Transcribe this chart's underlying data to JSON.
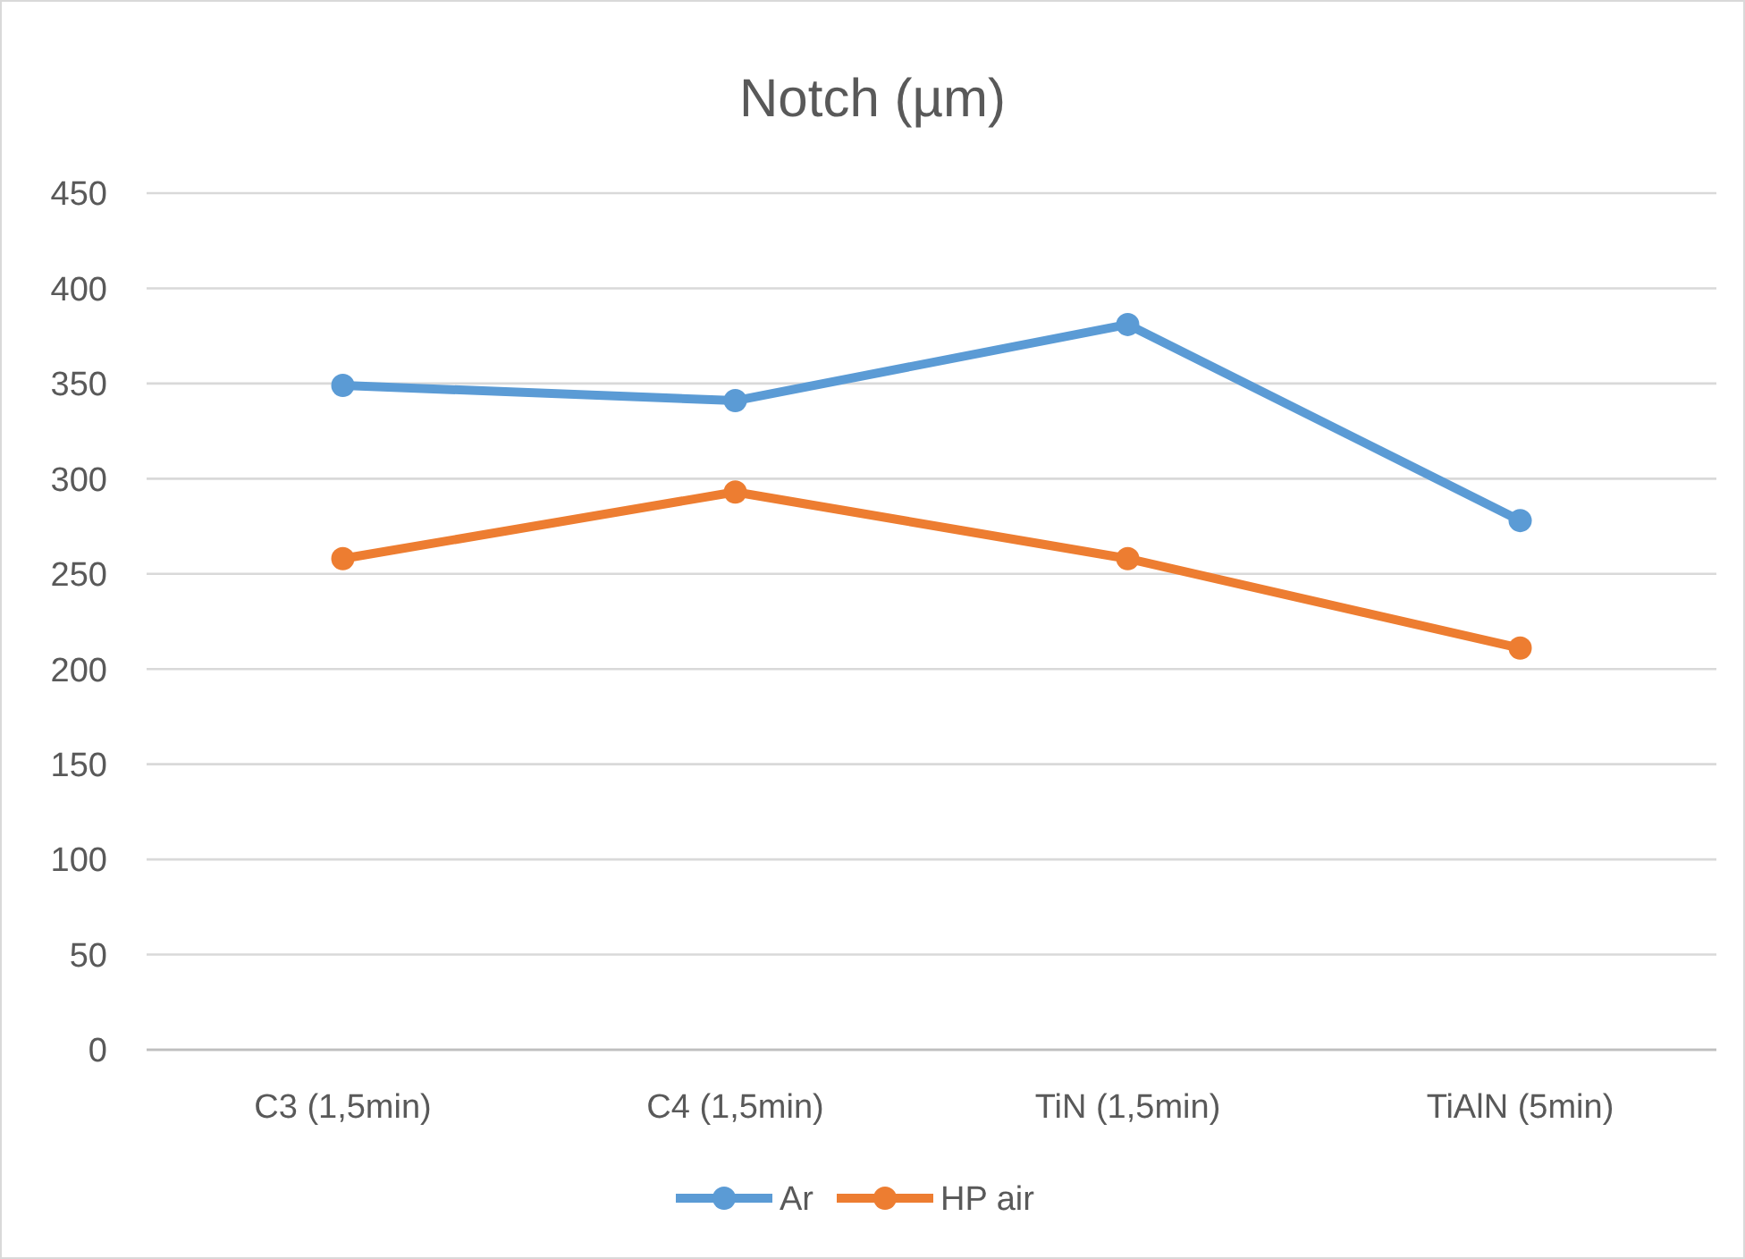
{
  "chart_data": {
    "type": "line",
    "title": "Notch (µm)",
    "categories": [
      "C3 (1,5min)",
      "C4 (1,5min)",
      "TiN (1,5min)",
      "TiAlN (5min)"
    ],
    "series": [
      {
        "name": "Ar",
        "color": "#5b9bd5",
        "values": [
          349,
          341,
          381,
          278
        ]
      },
      {
        "name": "HP air",
        "color": "#ed7d31",
        "values": [
          258,
          293,
          258,
          211
        ]
      }
    ],
    "ylim": [
      0,
      450
    ],
    "yticks": [
      0,
      50,
      100,
      150,
      200,
      250,
      300,
      350,
      400,
      450
    ],
    "grid": "y",
    "legend": "bottom",
    "marker": "circle",
    "line_style": "solid"
  }
}
